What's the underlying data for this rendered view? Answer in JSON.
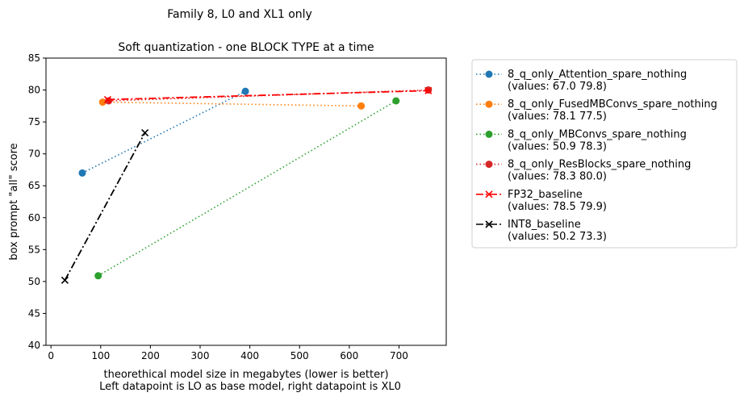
{
  "chart_data": {
    "type": "line",
    "title": "Family 8, L0 and XL1 only",
    "subtitle": "Soft quantization - one BLOCK TYPE at a time",
    "xlabel": "theorethical model size in megabytes (lower is better)",
    "xlabel2": "Left datapoint is LO as base model, right datapoint is XL0",
    "ylabel": "box prompt \"all\" score",
    "xlim": [
      -10,
      795
    ],
    "ylim": [
      40,
      85
    ],
    "xticks": [
      0,
      100,
      200,
      300,
      400,
      500,
      600,
      700
    ],
    "yticks": [
      40,
      45,
      50,
      55,
      60,
      65,
      70,
      75,
      80,
      85
    ],
    "grid": false,
    "legend_position": "outside-right",
    "series": [
      {
        "name": "8_q_only_Attention_spare_nothing",
        "values_label": "(values: 67.0 79.8)",
        "x": [
          63,
          391
        ],
        "y": [
          67.0,
          79.8
        ],
        "color": "#1f77b4",
        "marker": "circle",
        "line": "dotted"
      },
      {
        "name": "8_q_only_FusedMBConvs_spare_nothing",
        "values_label": "(values: 78.1 77.5)",
        "x": [
          104,
          624
        ],
        "y": [
          78.1,
          77.5
        ],
        "color": "#ff7f0e",
        "marker": "circle",
        "line": "dotted"
      },
      {
        "name": "8_q_only_MBConvs_spare_nothing",
        "values_label": "(values: 50.9 78.3)",
        "x": [
          95,
          694
        ],
        "y": [
          50.9,
          78.3
        ],
        "color": "#2ca02c",
        "marker": "circle",
        "line": "dotted"
      },
      {
        "name": "8_q_only_ResBlocks_spare_nothing",
        "values_label": "(values: 78.3 80.0)",
        "x": [
          116,
          759
        ],
        "y": [
          78.3,
          80.0
        ],
        "color": "#d62728",
        "marker": "circle",
        "line": "dotted"
      },
      {
        "name": "FP32_baseline",
        "values_label": "(values: 78.5 79.9)",
        "x": [
          114,
          759
        ],
        "y": [
          78.5,
          79.9
        ],
        "color": "#ff0000",
        "marker": "x",
        "line": "dashdot"
      },
      {
        "name": "INT8_baseline",
        "values_label": "(values: 50.2 73.3)",
        "x": [
          28,
          189
        ],
        "y": [
          50.2,
          73.3
        ],
        "color": "#000000",
        "marker": "x",
        "line": "dashdot"
      }
    ]
  }
}
